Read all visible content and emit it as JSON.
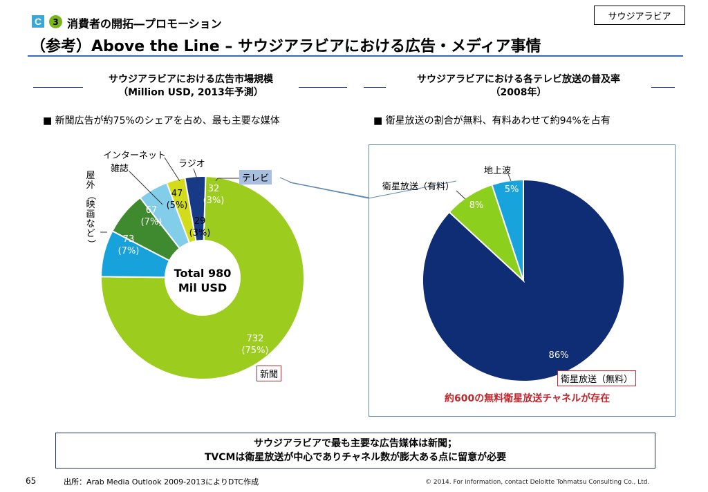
{
  "country_tag": "サウジアラビア",
  "section": {
    "letter": "C",
    "number": "3",
    "title": "消費者の開拓―プロモーション"
  },
  "main_title": "（参考）Above the Line – サウジアラビアにおける広告・メディア事情",
  "left_panel": {
    "heading_line1": "サウジアラビアにおける広告市場規模",
    "heading_line2": "（Million USD, 2013年予測）",
    "bullet": "■ 新聞広告が約75%のシェアを占め、最も主要な媒体",
    "center_line1": "Total 980",
    "center_line2": "Mil USD",
    "callouts": {
      "internet": "インターネット",
      "magazine": "雑誌",
      "radio": "ラジオ",
      "tv": "テレビ",
      "outdoor": "屋外（映画など）",
      "newspaper": "新聞"
    }
  },
  "right_panel": {
    "heading_line1": "サウジアラビアにおける各テレビ放送の普及率",
    "heading_line2": "（2008年）",
    "bullet": "■ 衛星放送の割合が無料、有料あわせて約94%を占有",
    "callouts": {
      "terrestrial": "地上波",
      "satellite_paid": "衛星放送（有料）",
      "satellite_free": "衛星放送（無料）"
    },
    "note": "約600の無料衛星放送チャネルが存在"
  },
  "summary_line1": "サウジアラビアで最も主要な広告媒体は新聞；",
  "summary_line2": "TVCMは衛星放送が中心でありチャネル数が膨大ある点に留意が必要",
  "page_number": "65",
  "source": "出所：Arab Media Outlook 2009-2013によりDTC作成",
  "copyright": "© 2014. For information, contact Deloitte Tohmatsu Consulting Co., Ltd.",
  "chart_data": [
    {
      "type": "pie",
      "variant": "donut",
      "categories": [
        "新聞",
        "屋外（映画など）",
        "雑誌",
        "インターネット",
        "ラジオ",
        "テレビ"
      ],
      "values": [
        732,
        73,
        67,
        47,
        29,
        32
      ],
      "value_labels": [
        "732",
        "73",
        "67",
        "47",
        "29",
        "32"
      ],
      "percent_labels": [
        "(75%)",
        "(7%)",
        "(7%)",
        "(5%)",
        "(3%)",
        "(3%)"
      ],
      "colors": [
        "#9ccd1e",
        "#18a2dc",
        "#3f8a2e",
        "#82cdea",
        "#d2dc1a",
        "#173a86"
      ],
      "title": "サウジアラビアにおける広告市場規模",
      "subtitle": "（Million USD, 2013年予測）"
    },
    {
      "type": "pie",
      "categories": [
        "衛星放送（無料）",
        "衛星放送（有料）",
        "地上波"
      ],
      "values": [
        86,
        8,
        5
      ],
      "value_labels": [
        "86%",
        "8%",
        "5%"
      ],
      "colors": [
        "#0f2d74",
        "#8ccf1c",
        "#19a3dd"
      ],
      "title": "サウジアラビアにおける各テレビ放送の普及率",
      "subtitle": "（2008年）"
    }
  ]
}
